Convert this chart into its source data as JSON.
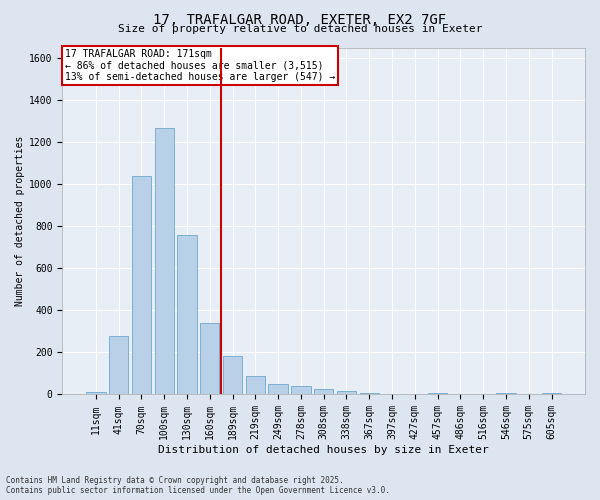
{
  "title_line1": "17, TRAFALGAR ROAD, EXETER, EX2 7GF",
  "title_line2": "Size of property relative to detached houses in Exeter",
  "xlabel": "Distribution of detached houses by size in Exeter",
  "ylabel": "Number of detached properties",
  "bar_labels": [
    "11sqm",
    "41sqm",
    "70sqm",
    "100sqm",
    "130sqm",
    "160sqm",
    "189sqm",
    "219sqm",
    "249sqm",
    "278sqm",
    "308sqm",
    "338sqm",
    "367sqm",
    "397sqm",
    "427sqm",
    "457sqm",
    "486sqm",
    "516sqm",
    "546sqm",
    "575sqm",
    "605sqm"
  ],
  "bar_values": [
    10,
    280,
    1040,
    1265,
    760,
    340,
    185,
    90,
    48,
    38,
    25,
    15,
    5,
    0,
    0,
    5,
    0,
    0,
    5,
    0,
    5
  ],
  "bar_color": "#b8d0e8",
  "bar_edgecolor": "#6fa8d0",
  "vline_x": 5.5,
  "vline_color": "#cc0000",
  "ylim": [
    0,
    1650
  ],
  "yticks": [
    0,
    200,
    400,
    600,
    800,
    1000,
    1200,
    1400,
    1600
  ],
  "annotation_title": "17 TRAFALGAR ROAD: 171sqm",
  "annotation_line1": "← 86% of detached houses are smaller (3,515)",
  "annotation_line2": "13% of semi-detached houses are larger (547) →",
  "annotation_box_facecolor": "#ffffff",
  "annotation_box_edgecolor": "#cc0000",
  "footnote1": "Contains HM Land Registry data © Crown copyright and database right 2025.",
  "footnote2": "Contains public sector information licensed under the Open Government Licence v3.0.",
  "bg_color": "#dde6f0",
  "plot_bg_color": "#e8eef6",
  "grid_color": "#ffffff",
  "title_fontsize": 10,
  "subtitle_fontsize": 8,
  "tick_fontsize": 7,
  "ylabel_fontsize": 7,
  "xlabel_fontsize": 8,
  "annot_fontsize": 7,
  "footnote_fontsize": 5.5
}
